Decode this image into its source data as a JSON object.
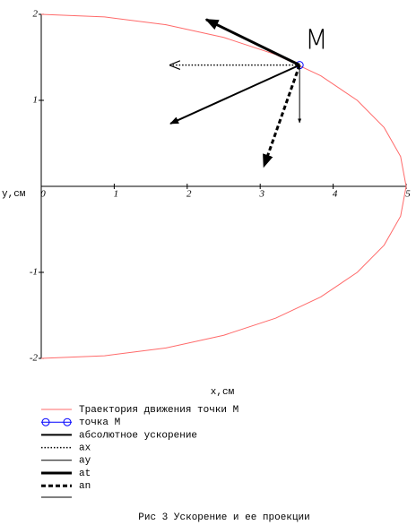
{
  "chart_data": {
    "type": "line",
    "caption": "Рис 3 Ускорение и ее проекции",
    "xlabel": "x,см",
    "ylabel": "y,см",
    "annotation": "M",
    "xlim": [
      0,
      5
    ],
    "ylim": [
      -2,
      2
    ],
    "xticks": [
      0,
      1,
      2,
      3,
      4,
      5
    ],
    "yticks": [
      -2,
      -1,
      1,
      2
    ],
    "series": [
      {
        "name": "Траектория движения точки M",
        "color": "#ff6a6a",
        "style": "curve",
        "x": [
          0,
          0.868,
          1.71,
          2.5,
          3.214,
          3.83,
          4.33,
          4.698,
          4.924,
          5,
          4.924,
          4.698,
          4.33,
          3.83,
          3.214,
          2.5,
          1.71,
          0.868,
          0
        ],
        "y": [
          -2,
          -1.97,
          -1.879,
          -1.732,
          -1.532,
          -1.286,
          -1,
          -0.684,
          -0.347,
          0,
          0.347,
          0.684,
          1,
          1.286,
          1.532,
          1.732,
          1.879,
          1.97,
          2
        ]
      },
      {
        "name": "точка M",
        "color": "#0000ff",
        "style": "point",
        "x": [
          3.54
        ],
        "y": [
          1.41
        ]
      },
      {
        "name": "абсолютное ускорение",
        "color": "#000000",
        "style": "medium",
        "x": [
          3.54,
          1.77
        ],
        "y": [
          1.41,
          0.73
        ]
      },
      {
        "name": "ax",
        "color": "#000000",
        "style": "dotted",
        "x": [
          3.54,
          1.77
        ],
        "y": [
          1.41,
          1.41
        ]
      },
      {
        "name": "ay",
        "color": "#000000",
        "style": "thin",
        "x": [
          3.54,
          3.54
        ],
        "y": [
          1.41,
          0.74
        ]
      },
      {
        "name": "at",
        "color": "#000000",
        "style": "thick",
        "x": [
          3.54,
          2.26
        ],
        "y": [
          1.41,
          1.94
        ]
      },
      {
        "name": "an",
        "color": "#000000",
        "style": "dashed",
        "x": [
          3.54,
          3.05
        ],
        "y": [
          1.41,
          0.23
        ]
      }
    ]
  }
}
